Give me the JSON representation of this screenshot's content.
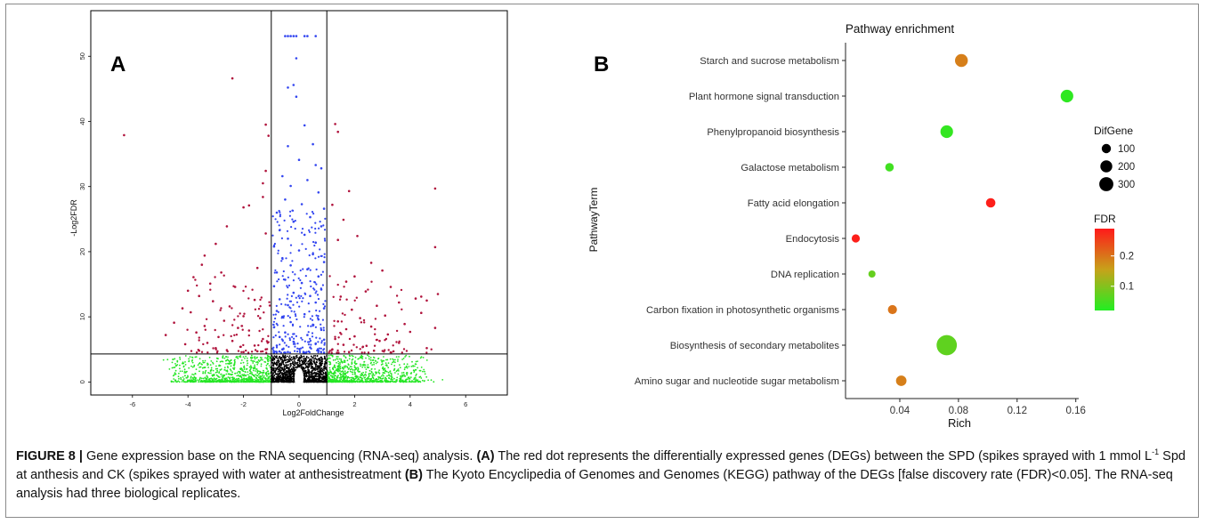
{
  "chart_data": [
    {
      "type": "scatter",
      "panel_label": "A",
      "xlabel": "Log2FoldChange",
      "ylabel": "-Log2FDR",
      "xlim": [
        -7.5,
        7.5
      ],
      "ylim": [
        -2,
        57
      ],
      "x_ticks": [
        -6,
        -4,
        -2,
        0,
        2,
        4,
        6
      ],
      "y_ticks": [
        0,
        10,
        20,
        30,
        40,
        50
      ],
      "threshold_lines": {
        "x": [
          -1,
          1
        ],
        "y": 4.3
      },
      "colors": {
        "significant": "#b0133c",
        "fdr_pass_small_fc": "#3346f0",
        "fc_pass_not_significant": "#25e625",
        "not_significant": "#000000"
      },
      "series": [
        {
          "color_key": "significant",
          "points": [
            [
              -6.3,
              37.9
            ],
            [
              -2.4,
              46.6
            ],
            [
              -1.2,
              39.5
            ],
            [
              -1.1,
              37.8
            ],
            [
              -1.2,
              32.4
            ],
            [
              -1.3,
              30.5
            ],
            [
              -1.3,
              28.4
            ],
            [
              -1.8,
              27.1
            ],
            [
              -2.0,
              26.8
            ],
            [
              -2.6,
              23.9
            ],
            [
              -1.2,
              22.8
            ],
            [
              -3.0,
              21.2
            ],
            [
              -3.4,
              19.4
            ],
            [
              -3.5,
              18.0
            ],
            [
              -1.5,
              17.5
            ],
            [
              -2.8,
              16.8
            ],
            [
              -3.8,
              16.1
            ],
            [
              -3.2,
              15.1
            ],
            [
              -2.3,
              14.6
            ],
            [
              -4.0,
              14.0
            ],
            [
              -3.6,
              13.2
            ],
            [
              -1.6,
              12.6
            ],
            [
              -3.1,
              12.4
            ],
            [
              -2.5,
              11.6
            ],
            [
              -4.2,
              11.3
            ],
            [
              -3.9,
              10.7
            ],
            [
              -2.0,
              10.1
            ],
            [
              -1.4,
              9.8
            ],
            [
              -2.7,
              9.4
            ],
            [
              -4.5,
              9.1
            ],
            [
              -3.4,
              8.6
            ],
            [
              -2.2,
              8.3
            ],
            [
              -1.8,
              7.9
            ],
            [
              -3.7,
              7.6
            ],
            [
              -4.8,
              7.2
            ],
            [
              -2.9,
              6.9
            ],
            [
              -1.3,
              6.6
            ],
            [
              -2.4,
              6.3
            ],
            [
              -3.3,
              6.0
            ],
            [
              -4.1,
              5.8
            ],
            [
              -1.6,
              5.6
            ],
            [
              -2.1,
              5.4
            ],
            [
              -3.0,
              5.2
            ],
            [
              -1.2,
              5.0
            ],
            [
              -2.6,
              4.9
            ],
            [
              -3.6,
              4.8
            ],
            [
              -1.5,
              4.7
            ],
            [
              -2.0,
              4.6
            ],
            [
              1.3,
              39.6
            ],
            [
              1.4,
              38.4
            ],
            [
              1.8,
              29.3
            ],
            [
              1.2,
              27.2
            ],
            [
              1.6,
              24.9
            ],
            [
              2.1,
              22.4
            ],
            [
              1.4,
              21.8
            ],
            [
              2.6,
              18.3
            ],
            [
              3.0,
              17.1
            ],
            [
              2.0,
              16.2
            ],
            [
              1.7,
              15.4
            ],
            [
              3.3,
              14.6
            ],
            [
              2.4,
              13.9
            ],
            [
              1.5,
              13.1
            ],
            [
              4.2,
              12.8
            ],
            [
              3.6,
              12.2
            ],
            [
              2.8,
              11.7
            ],
            [
              1.9,
              11.1
            ],
            [
              4.4,
              10.6
            ],
            [
              3.1,
              10.2
            ],
            [
              2.2,
              9.8
            ],
            [
              1.4,
              9.3
            ],
            [
              3.8,
              8.9
            ],
            [
              2.6,
              8.5
            ],
            [
              1.7,
              8.1
            ],
            [
              4.0,
              7.7
            ],
            [
              3.2,
              7.3
            ],
            [
              2.0,
              7.0
            ],
            [
              1.3,
              6.6
            ],
            [
              2.9,
              6.3
            ],
            [
              3.6,
              6.0
            ],
            [
              1.6,
              5.7
            ],
            [
              2.3,
              5.4
            ],
            [
              4.6,
              5.2
            ],
            [
              1.2,
              5.0
            ],
            [
              2.7,
              4.8
            ],
            [
              3.4,
              4.7
            ],
            [
              1.8,
              4.6
            ],
            [
              4.9,
              29.7
            ],
            [
              4.9,
              20.7
            ],
            [
              5.0,
              13.5
            ],
            [
              4.9,
              8.3
            ],
            [
              4.4,
              13.1
            ],
            [
              4.6,
              12.5
            ]
          ]
        },
        {
          "color_key": "fdr_pass_small_fc",
          "points": [
            [
              -0.5,
              53.1
            ],
            [
              -0.4,
              53.1
            ],
            [
              -0.3,
              53.1
            ],
            [
              -0.2,
              53.1
            ],
            [
              -0.1,
              53.1
            ],
            [
              0.2,
              53.1
            ],
            [
              0.3,
              53.1
            ],
            [
              0.6,
              53.1
            ],
            [
              -0.1,
              49.7
            ],
            [
              -0.4,
              45.2
            ],
            [
              -0.2,
              45.6
            ],
            [
              -0.1,
              43.8
            ],
            [
              0.2,
              39.4
            ],
            [
              0.5,
              36.5
            ],
            [
              -0.4,
              36.2
            ],
            [
              0.0,
              34.1
            ],
            [
              0.6,
              33.3
            ],
            [
              0.8,
              32.8
            ],
            [
              -0.6,
              31.6
            ],
            [
              0.3,
              31.0
            ],
            [
              -0.3,
              30.1
            ],
            [
              0.7,
              29.1
            ],
            [
              -0.5,
              28.0
            ],
            [
              0.1,
              27.3
            ],
            [
              0.9,
              26.6
            ],
            [
              -0.8,
              26.0
            ],
            [
              0.4,
              25.3
            ],
            [
              -0.2,
              24.6
            ],
            [
              0.8,
              23.9
            ],
            [
              -0.7,
              23.3
            ],
            [
              0.2,
              22.6
            ],
            [
              -0.4,
              22.0
            ],
            [
              0.6,
              21.4
            ],
            [
              -0.9,
              20.8
            ],
            [
              0.0,
              20.2
            ],
            [
              0.5,
              19.6
            ],
            [
              -0.6,
              19.0
            ],
            [
              0.9,
              18.4
            ],
            [
              -0.3,
              17.9
            ],
            [
              0.3,
              17.3
            ],
            [
              -0.8,
              16.8
            ],
            [
              0.7,
              16.2
            ],
            [
              -0.5,
              15.7
            ],
            [
              0.1,
              15.2
            ],
            [
              -0.9,
              14.7
            ],
            [
              0.8,
              14.2
            ],
            [
              -0.2,
              13.7
            ],
            [
              0.4,
              13.2
            ],
            [
              -0.7,
              12.7
            ],
            [
              0.6,
              12.2
            ],
            [
              -0.4,
              11.8
            ],
            [
              0.9,
              11.3
            ],
            [
              -0.8,
              10.9
            ],
            [
              0.2,
              10.4
            ],
            [
              -0.6,
              10.0
            ],
            [
              0.7,
              9.6
            ],
            [
              -0.3,
              9.2
            ],
            [
              0.5,
              8.8
            ],
            [
              -0.9,
              8.4
            ],
            [
              0.8,
              8.0
            ],
            [
              -0.5,
              7.6
            ],
            [
              0.3,
              7.2
            ],
            [
              -0.7,
              6.9
            ],
            [
              0.9,
              6.5
            ],
            [
              -0.2,
              6.2
            ],
            [
              0.6,
              5.9
            ],
            [
              -0.8,
              5.6
            ],
            [
              0.4,
              5.3
            ],
            [
              -0.6,
              5.0
            ],
            [
              0.7,
              4.8
            ],
            [
              -0.4,
              4.6
            ],
            [
              0.2,
              4.5
            ],
            [
              -0.9,
              4.5
            ],
            [
              0.9,
              4.5
            ]
          ]
        }
      ]
    },
    {
      "type": "scatter",
      "panel_label": "B",
      "title": "Pathway enrichment",
      "xlabel": "Rich",
      "ylabel": "PathwayTerm",
      "xlim": [
        0.003,
        0.162
      ],
      "x_ticks": [
        0.04,
        0.08,
        0.12,
        0.16
      ],
      "x_tick_labels": [
        "0.04",
        "0.08",
        "0.12",
        "0.16"
      ],
      "categories": [
        "Starch and sucrose metabolism",
        "Plant hormone signal transduction",
        "Phenylpropanoid biosynthesis",
        "Galactose metabolism",
        "Fatty acid elongation",
        "Endocytosis",
        "DNA replication",
        "Carbon fixation in photosynthetic organisms",
        "Biosynthesis of secondary metabolites",
        "Amino sugar and nucleotide sugar metabolism"
      ],
      "points": [
        {
          "term": "Starch and sucrose metabolism",
          "rich": 0.082,
          "difgene": 100,
          "fdr": 0.19
        },
        {
          "term": "Plant hormone signal transduction",
          "rich": 0.154,
          "difgene": 95,
          "fdr": 0.03
        },
        {
          "term": "Phenylpropanoid biosynthesis",
          "rich": 0.072,
          "difgene": 95,
          "fdr": 0.035
        },
        {
          "term": "Galactose metabolism",
          "rich": 0.033,
          "difgene": 28,
          "fdr": 0.045
        },
        {
          "term": "Fatty acid elongation",
          "rich": 0.102,
          "difgene": 40,
          "fdr": 0.285
        },
        {
          "term": "Endocytosis",
          "rich": 0.01,
          "difgene": 25,
          "fdr": 0.285
        },
        {
          "term": "DNA replication",
          "rich": 0.021,
          "difgene": 15,
          "fdr": 0.075
        },
        {
          "term": "Carbon fixation in photosynthetic organisms",
          "rich": 0.035,
          "difgene": 35,
          "fdr": 0.2
        },
        {
          "term": "Biosynthesis of secondary metabolites",
          "rich": 0.072,
          "difgene": 330,
          "fdr": 0.07
        },
        {
          "term": "Amino sugar and nucleotide sugar metabolism",
          "rich": 0.041,
          "difgene": 55,
          "fdr": 0.19
        }
      ],
      "size_legend": {
        "title": "DifGene",
        "values": [
          100,
          200,
          300
        ],
        "labels": [
          "100",
          "200",
          "300"
        ]
      },
      "color_legend": {
        "title": "FDR",
        "ticks": [
          0.2,
          0.1
        ],
        "tick_labels": [
          "0.2",
          "0.1"
        ],
        "range": [
          0.02,
          0.29
        ],
        "low_color": "#22ee22",
        "high_color": "#ff1a1a"
      },
      "grid": false
    }
  ],
  "caption": {
    "figure_label": "FIGURE 8 |",
    "intro": " Gene expression base on the RNA sequencing (RNA-seq) analysis. ",
    "a_label": "(A)",
    "a_text_1": " The red dot represents the differentially expressed genes (DEGs) between the SPD (spikes sprayed with 1 mmol L",
    "a_superscript": "-1",
    "a_text_2": " Spd at anthesis and CK (spikes sprayed with water at anthesistreatment ",
    "b_label": "(B)",
    "b_text": " The Kyoto Encyclipedia of Genomes and Genomes (KEGG) pathway of the DEGs [false discovery rate (FDR)<0.05]. The RNA-seq analysis had three biological replicates."
  }
}
